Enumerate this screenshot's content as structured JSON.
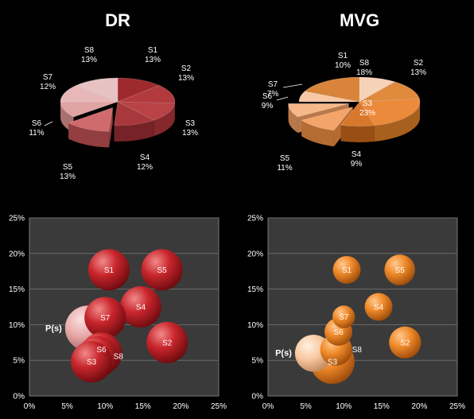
{
  "chart_data": [
    {
      "type": "pie",
      "title": "DR",
      "three_d": true,
      "exploded": [
        "S5"
      ],
      "palette": "red",
      "slices": [
        {
          "label": "S1",
          "value": 13,
          "pct": "13%"
        },
        {
          "label": "S2",
          "value": 13,
          "pct": "13%"
        },
        {
          "label": "S3",
          "value": 13,
          "pct": "13%"
        },
        {
          "label": "S4",
          "value": 12,
          "pct": "12%"
        },
        {
          "label": "S5",
          "value": 13,
          "pct": "13%"
        },
        {
          "label": "S6",
          "value": 11,
          "pct": "11%"
        },
        {
          "label": "S7",
          "value": 12,
          "pct": "12%"
        },
        {
          "label": "S8",
          "value": 13,
          "pct": "13%"
        }
      ]
    },
    {
      "type": "pie",
      "title": "MVG",
      "three_d": true,
      "exploded": [
        "S5",
        "S6"
      ],
      "palette": "orange",
      "slices": [
        {
          "label": "S1",
          "value": 10,
          "pct": "10%"
        },
        {
          "label": "S2",
          "value": 13,
          "pct": "13%"
        },
        {
          "label": "S3",
          "value": 23,
          "pct": "23%"
        },
        {
          "label": "S4",
          "value": 9,
          "pct": "9%"
        },
        {
          "label": "S5",
          "value": 11,
          "pct": "11%"
        },
        {
          "label": "S6",
          "value": 9,
          "pct": "9%"
        },
        {
          "label": "S7",
          "value": 7,
          "pct": "7%"
        },
        {
          "label": "S8",
          "value": 18,
          "pct": "18%"
        }
      ]
    },
    {
      "type": "scatter",
      "subtype": "bubble",
      "palette": "red",
      "xlim": [
        0,
        25
      ],
      "ylim": [
        0,
        25
      ],
      "xticks": [
        "0%",
        "5%",
        "10%",
        "15%",
        "20%",
        "25%"
      ],
      "yticks": [
        "0%",
        "5%",
        "10%",
        "15%",
        "20%",
        "25%"
      ],
      "grid": true,
      "points": [
        {
          "label": "S1",
          "x": 10.5,
          "y": 17.7,
          "size": 1.0
        },
        {
          "label": "S5",
          "x": 17.5,
          "y": 17.7,
          "size": 1.0
        },
        {
          "label": "S4",
          "x": 14.7,
          "y": 12.5,
          "size": 1.0
        },
        {
          "label": "S7",
          "x": 10.0,
          "y": 11.0,
          "size": 1.0
        },
        {
          "label": "S2",
          "x": 18.2,
          "y": 7.5,
          "size": 1.0
        },
        {
          "label": "S6",
          "x": 9.5,
          "y": 6.0,
          "size": 1.0
        },
        {
          "label": "S8",
          "x": 9.0,
          "y": 5.5,
          "size": 1.0
        },
        {
          "label": "S3",
          "x": 8.2,
          "y": 4.8,
          "size": 1.0
        },
        {
          "label": "P(s)",
          "x": 7.7,
          "y": 9.5,
          "size": 1.2,
          "highlight": true
        }
      ]
    },
    {
      "type": "scatter",
      "subtype": "bubble",
      "palette": "orange",
      "xlim": [
        0,
        25
      ],
      "ylim": [
        0,
        25
      ],
      "xticks": [
        "0%",
        "5%",
        "10%",
        "15%",
        "20%",
        "25%"
      ],
      "yticks": [
        "0%",
        "5%",
        "10%",
        "15%",
        "20%",
        "25%"
      ],
      "grid": true,
      "points": [
        {
          "label": "S1",
          "x": 10.4,
          "y": 17.7,
          "size": 0.45
        },
        {
          "label": "S5",
          "x": 17.4,
          "y": 17.7,
          "size": 0.55
        },
        {
          "label": "S4",
          "x": 14.6,
          "y": 12.5,
          "size": 0.45
        },
        {
          "label": "S7",
          "x": 10.0,
          "y": 11.1,
          "size": 0.3
        },
        {
          "label": "S2",
          "x": 18.1,
          "y": 7.5,
          "size": 0.6
        },
        {
          "label": "S6",
          "x": 9.3,
          "y": 9.0,
          "size": 0.45
        },
        {
          "label": "S8",
          "x": 9.0,
          "y": 6.5,
          "size": 0.6
        },
        {
          "label": "S3",
          "x": 8.5,
          "y": 4.8,
          "size": 1.15
        },
        {
          "label": "P(s)",
          "x": 6.0,
          "y": 6.0,
          "size": 0.8,
          "highlight": true
        }
      ]
    }
  ]
}
